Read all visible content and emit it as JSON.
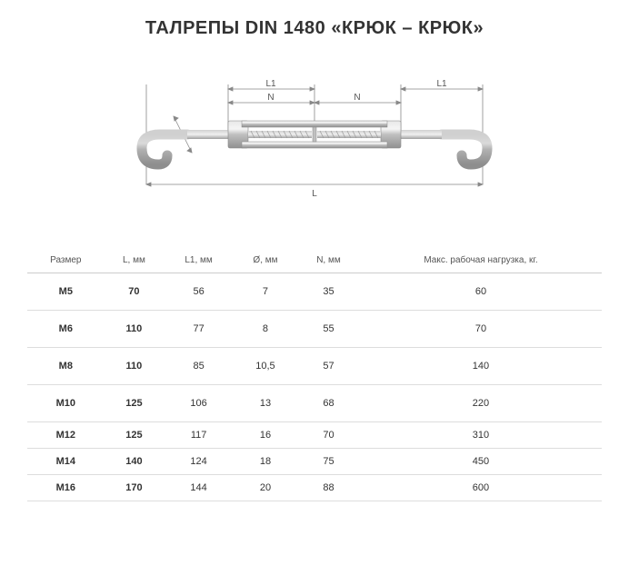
{
  "title": "ТАЛРЕПЫ DIN 1480 «КРЮК – КРЮК»",
  "diagram": {
    "labels": {
      "L1": "L1",
      "N": "N",
      "L": "L",
      "diameter": "Ø"
    },
    "colors": {
      "dim_line": "#888888",
      "dim_text": "#555555",
      "metal_light": "#d8d8d8",
      "metal_mid": "#b8b8b8",
      "metal_dark": "#909090",
      "thread": "#a0a0a0"
    }
  },
  "table": {
    "columns": [
      "Размер",
      "L, мм",
      "L1, мм",
      "Ø, мм",
      "N, мм",
      "Макс. рабочая нагрузка, кг."
    ],
    "rows": [
      [
        "M5",
        "70",
        "56",
        "7",
        "35",
        "60"
      ],
      [
        "M6",
        "110",
        "77",
        "8",
        "55",
        "70"
      ],
      [
        "M8",
        "110",
        "85",
        "10,5",
        "57",
        "140"
      ],
      [
        "M10",
        "125",
        "106",
        "13",
        "68",
        "220"
      ],
      [
        "M12",
        "125",
        "117",
        "16",
        "70",
        "310"
      ],
      [
        "M14",
        "140",
        "124",
        "18",
        "75",
        "450"
      ],
      [
        "M16",
        "170",
        "144",
        "20",
        "88",
        "600"
      ]
    ],
    "tight_rows": [
      4,
      5,
      6
    ]
  }
}
